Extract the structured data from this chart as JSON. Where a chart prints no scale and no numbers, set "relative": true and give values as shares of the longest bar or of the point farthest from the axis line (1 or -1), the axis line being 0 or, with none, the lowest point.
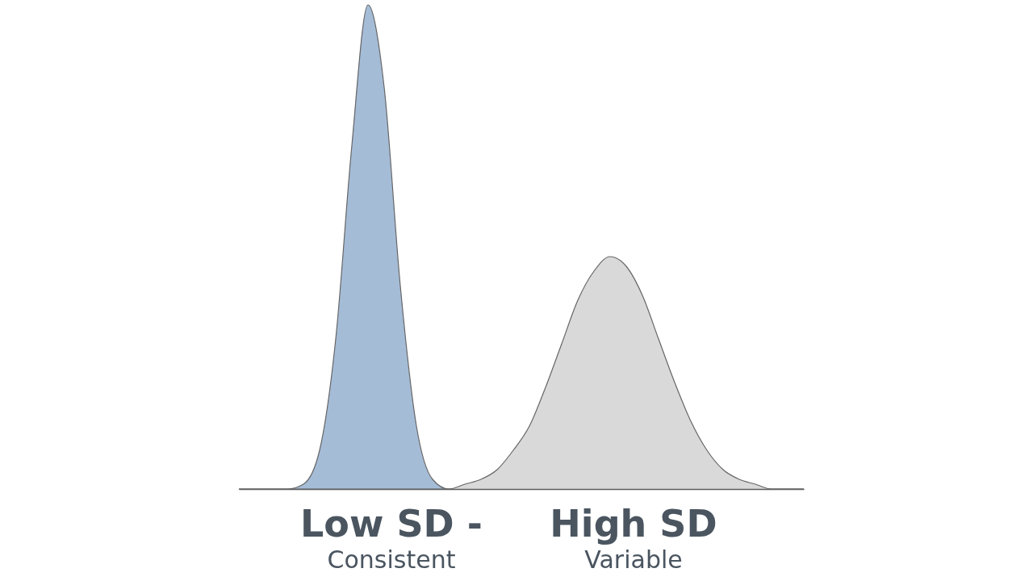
{
  "chart_data": {
    "type": "area",
    "relative": true,
    "categories": [
      null,
      null,
      null,
      null,
      null,
      null,
      null,
      null,
      null,
      null,
      null,
      null,
      null,
      null,
      null,
      null,
      null,
      null,
      null,
      null,
      null,
      null,
      null,
      null,
      null,
      null,
      null,
      null,
      null,
      null,
      null,
      null,
      null,
      null,
      null,
      null
    ],
    "series": [
      {
        "color": "#7f9fc6",
        "values": [
          0,
          0,
          0,
          0,
          0.01,
          0.08,
          0.31,
          0.71,
          1,
          0.83,
          0.42,
          0.13,
          0.02,
          0,
          0,
          0,
          0,
          0,
          0,
          0,
          0,
          0,
          0,
          0,
          0,
          0,
          0,
          0,
          0,
          0,
          0,
          0,
          0,
          0,
          0,
          0
        ]
      },
      {
        "color": "#c9c9c9",
        "values": [
          0,
          0,
          0,
          0,
          0,
          0,
          0,
          0,
          0,
          0,
          0,
          0,
          0,
          0,
          0.01,
          0.02,
          0.04,
          0.08,
          0.13,
          0.21,
          0.3,
          0.39,
          0.45,
          0.48,
          0.46,
          0.4,
          0.31,
          0.22,
          0.14,
          0.08,
          0.04,
          0.02,
          0.01,
          0,
          0,
          0
        ]
      }
    ],
    "annotations": [
      "Low SD -",
      "High SD",
      "Consistent",
      "Variable"
    ]
  }
}
